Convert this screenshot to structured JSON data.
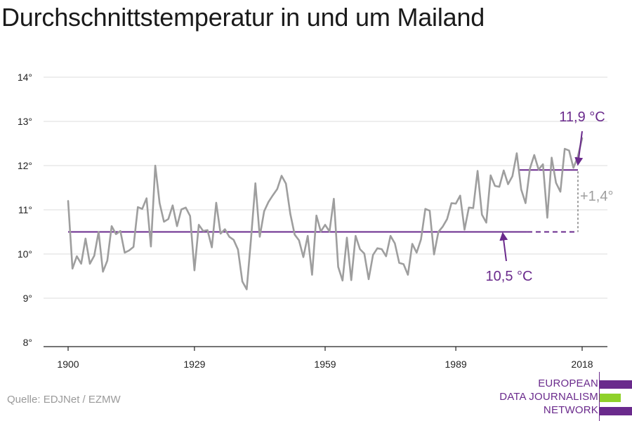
{
  "title": "Durchschnittstemperatur in und um Mailand",
  "source": "Quelle: EDJNet / EZMW",
  "logo": {
    "lines": [
      "EUROPEAN",
      "DATA JOURNALISM",
      "NETWORK"
    ],
    "colors": {
      "purple": "#6a2a8c",
      "green": "#8fd12a"
    }
  },
  "colors": {
    "line": "#9e9e9e",
    "accent": "#6a2a8c",
    "diff": "#9e9e9e",
    "grid": "#dddddd",
    "axis": "#222222"
  },
  "chart_data": {
    "type": "line",
    "title": "Durchschnittstemperatur in und um Mailand",
    "xlabel": "",
    "ylabel": "",
    "xlim": [
      1900,
      2018
    ],
    "ylim": [
      8,
      14
    ],
    "grid": true,
    "x_ticks": [
      1900,
      1929,
      1959,
      1989,
      2018
    ],
    "x_tick_labels": [
      "1900",
      "1929",
      "1959",
      "1989",
      "2018"
    ],
    "y_ticks": [
      8,
      9,
      10,
      11,
      12,
      13,
      14
    ],
    "y_tick_labels": [
      "8°",
      "9°",
      "10°",
      "11°",
      "12°",
      "13°",
      "14°"
    ],
    "series": [
      {
        "x": [
          1900,
          1901,
          1902,
          1903,
          1904,
          1905,
          1906,
          1907,
          1908,
          1909,
          1910,
          1911,
          1912,
          1913,
          1914,
          1915,
          1916,
          1917,
          1918,
          1919,
          1920,
          1921,
          1922,
          1923,
          1924,
          1925,
          1926,
          1927,
          1928,
          1929,
          1930,
          1931,
          1932,
          1933,
          1934,
          1935,
          1936,
          1937,
          1938,
          1939,
          1940,
          1941,
          1942,
          1943,
          1944,
          1945,
          1946,
          1947,
          1948,
          1949,
          1950,
          1951,
          1952,
          1953,
          1954,
          1955,
          1956,
          1957,
          1958,
          1959,
          1960,
          1961,
          1962,
          1963,
          1964,
          1965,
          1966,
          1967,
          1968,
          1969,
          1970,
          1971,
          1972,
          1973,
          1974,
          1975,
          1976,
          1977,
          1978,
          1979,
          1980,
          1981,
          1982,
          1983,
          1984,
          1985,
          1986,
          1987,
          1988,
          1989,
          1990,
          1991,
          1992,
          1993,
          1994,
          1995,
          1996,
          1997,
          1998,
          1999,
          2000,
          2001,
          2002,
          2003,
          2004,
          2005,
          2006,
          2007,
          2008,
          2009,
          2010,
          2011,
          2012,
          2013,
          2014,
          2015,
          2016,
          2017,
          2018
        ],
        "values": [
          11.2,
          9.67,
          9.95,
          9.78,
          10.35,
          9.78,
          9.96,
          10.5,
          9.6,
          9.85,
          10.63,
          10.45,
          10.52,
          10.03,
          10.08,
          10.16,
          11.06,
          11.02,
          11.26,
          10.17,
          12.0,
          11.15,
          10.73,
          10.79,
          11.1,
          10.63,
          11.01,
          11.05,
          10.86,
          9.63,
          10.66,
          10.52,
          10.54,
          10.15,
          11.16,
          10.46,
          10.56,
          10.39,
          10.32,
          10.1,
          9.38,
          9.2,
          10.35,
          11.6,
          10.39,
          10.97,
          11.18,
          11.33,
          11.47,
          11.77,
          11.59,
          10.91,
          10.44,
          10.31,
          9.93,
          10.41,
          9.53,
          10.87,
          10.51,
          10.66,
          10.51,
          11.25,
          9.71,
          9.4,
          10.37,
          9.41,
          10.41,
          10.11,
          10.01,
          9.43,
          9.98,
          10.13,
          10.11,
          9.95,
          10.41,
          10.24,
          9.8,
          9.77,
          9.53,
          10.23,
          10.03,
          10.33,
          11.02,
          10.98,
          9.99,
          10.5,
          10.62,
          10.79,
          11.15,
          11.14,
          11.32,
          10.55,
          11.05,
          11.04,
          11.88,
          10.89,
          10.71,
          11.78,
          11.54,
          11.52,
          11.89,
          11.58,
          11.76,
          12.28,
          11.46,
          11.15,
          11.93,
          12.24,
          11.91,
          12.03,
          10.82,
          12.18,
          11.61,
          11.41,
          12.38,
          12.34,
          11.95,
          12.2,
          12.62
        ]
      }
    ],
    "annotations": {
      "baseline": {
        "value": 10.5,
        "label": "10,5 °C",
        "solid_from": 1900,
        "solid_to": 2003,
        "dashed_to": 2018
      },
      "recent": {
        "value": 11.9,
        "label": "11,9 °C",
        "from": 2004,
        "to": 2018
      },
      "difference": {
        "label": "+1,4°"
      }
    }
  }
}
